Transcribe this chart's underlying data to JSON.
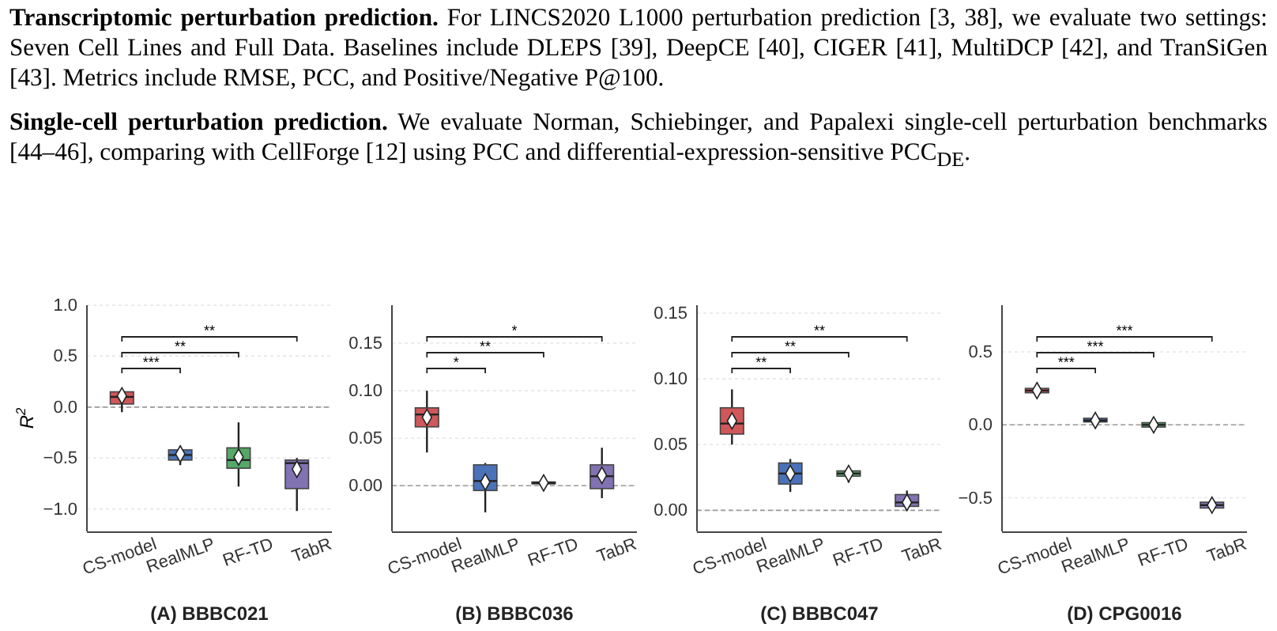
{
  "chart_data": [
    {
      "type": "other",
      "annotations": [
        "Transcriptomic perturbation prediction.",
        "For LINCS2020 L1000 perturbation prediction [3, 38], we evaluate two settings: Seven Cell Lines and Full Data. Baselines include DLEPS [39], DeepCE [40], CIGER [41], MultiDCP [42], and TranSiGen [43]. Metrics include RMSE, PCC, and Positive/Negative P@100.",
        "Single-cell perturbation prediction.",
        "We evaluate Norman, Schiebinger, and Papalexi single-cell perturbation benchmarks [44–46], comparing with CellForge [12] using PCC and differential-expression-sensitive PCC$_{DE}$."
      ]
    },
    {
      "type": "box",
      "xlabel": "(A) BBBC021",
      "ylabel": "R$^{2}$",
      "categories": [
        "CS-model",
        "RealMLP",
        "RF-TD",
        "TabR"
      ],
      "colors": [
        "#d0575a",
        "#4a72b8",
        "#55a868",
        "#8172b2"
      ],
      "boxes": [
        {
          "low": -0.05,
          "q1": 0.03,
          "median": 0.1,
          "q3": 0.15,
          "high": 0.17,
          "mean": 0.11
        },
        {
          "low": -0.57,
          "q1": -0.52,
          "median": -0.47,
          "q3": -0.42,
          "high": -0.38,
          "mean": -0.46
        },
        {
          "low": -0.78,
          "q1": -0.6,
          "median": -0.52,
          "q3": -0.4,
          "high": -0.15,
          "mean": -0.49
        },
        {
          "low": -1.02,
          "q1": -0.8,
          "median": -0.55,
          "q3": -0.52,
          "high": -0.5,
          "mean": -0.61
        }
      ],
      "ylim": [
        -1.22,
        1.0
      ],
      "yticks": [
        {
          "value": -1.0,
          "label": "−1.0"
        },
        {
          "value": -0.5,
          "label": "−0.5"
        },
        {
          "value": 0,
          "label": "0.0"
        },
        {
          "value": 0.5,
          "label": "0.5"
        },
        {
          "value": 1.0,
          "label": "1.0"
        }
      ],
      "grid": "y",
      "ref_lines": [
        {
          "axis": "y",
          "value": 0,
          "label": null,
          "color": "#999999",
          "line_style": "dashed"
        }
      ],
      "annotations": [
        "***",
        "**",
        "**"
      ]
    },
    {
      "type": "box",
      "xlabel": "(B) BBBC036",
      "categories": [
        "CS-model",
        "RealMLP",
        "RF-TD",
        "TabR"
      ],
      "colors": [
        "#d0575a",
        "#4a72b8",
        "#55a868",
        "#8172b2"
      ],
      "boxes": [
        {
          "low": 0.035,
          "q1": 0.062,
          "median": 0.075,
          "q3": 0.082,
          "high": 0.1,
          "mean": 0.072
        },
        {
          "low": -0.028,
          "q1": -0.005,
          "median": 0.005,
          "q3": 0.022,
          "high": 0.024,
          "mean": 0.004
        },
        {
          "low": 0.0,
          "q1": 0.002,
          "median": 0.003,
          "q3": 0.004,
          "high": 0.006,
          "mean": 0.003
        },
        {
          "low": -0.013,
          "q1": -0.003,
          "median": 0.01,
          "q3": 0.022,
          "high": 0.04,
          "mean": 0.011
        }
      ],
      "ylim": [
        -0.048,
        0.19
      ],
      "yticks": [
        {
          "value": 0,
          "label": "0.00"
        },
        {
          "value": 0.05,
          "label": "0.05"
        },
        {
          "value": 0.1,
          "label": "0.10"
        },
        {
          "value": 0.15,
          "label": "0.15"
        }
      ],
      "grid": "y",
      "ref_lines": [
        {
          "axis": "y",
          "value": 0,
          "label": null,
          "color": "#999999",
          "line_style": "dashed"
        }
      ],
      "annotations": [
        "*",
        "**",
        "*"
      ]
    },
    {
      "type": "box",
      "xlabel": "(C) BBBC047",
      "categories": [
        "CS-model",
        "RealMLP",
        "RF-TD",
        "TabR"
      ],
      "colors": [
        "#d0575a",
        "#4a72b8",
        "#55a868",
        "#8172b2"
      ],
      "boxes": [
        {
          "low": 0.05,
          "q1": 0.058,
          "median": 0.066,
          "q3": 0.078,
          "high": 0.092,
          "mean": 0.068
        },
        {
          "low": 0.014,
          "q1": 0.02,
          "median": 0.028,
          "q3": 0.036,
          "high": 0.039,
          "mean": 0.028
        },
        {
          "low": 0.021,
          "q1": 0.026,
          "median": 0.028,
          "q3": 0.03,
          "high": 0.031,
          "mean": 0.028
        },
        {
          "low": 0.0,
          "q1": 0.003,
          "median": 0.006,
          "q3": 0.012,
          "high": 0.015,
          "mean": 0.006
        }
      ],
      "ylim": [
        -0.016,
        0.156
      ],
      "yticks": [
        {
          "value": 0,
          "label": "0.00"
        },
        {
          "value": 0.05,
          "label": "0.05"
        },
        {
          "value": 0.1,
          "label": "0.10"
        },
        {
          "value": 0.15,
          "label": "0.15"
        }
      ],
      "grid": "y",
      "ref_lines": [
        {
          "axis": "y",
          "value": 0,
          "label": null,
          "color": "#999999",
          "line_style": "dashed"
        }
      ],
      "annotations": [
        "**",
        "**",
        "**"
      ]
    },
    {
      "type": "box",
      "xlabel": "(D) CPG0016",
      "categories": [
        "CS-model",
        "RealMLP",
        "RF-TD",
        "TabR"
      ],
      "colors": [
        "#d0575a",
        "#4a72b8",
        "#55a868",
        "#8172b2"
      ],
      "boxes": [
        {
          "low": 0.2,
          "q1": 0.22,
          "median": 0.235,
          "q3": 0.25,
          "high": 0.27,
          "mean": 0.235
        },
        {
          "low": 0.0,
          "q1": 0.02,
          "median": 0.03,
          "q3": 0.045,
          "high": 0.06,
          "mean": 0.03
        },
        {
          "low": -0.04,
          "q1": -0.015,
          "median": 0.0,
          "q3": 0.015,
          "high": 0.04,
          "mean": 0.0
        },
        {
          "low": -0.58,
          "q1": -0.57,
          "median": -0.55,
          "q3": -0.53,
          "high": -0.52,
          "mean": -0.55
        }
      ],
      "ylim": [
        -0.73,
        0.82
      ],
      "yticks": [
        {
          "value": -0.5,
          "label": "−0.5"
        },
        {
          "value": 0,
          "label": "0.0"
        },
        {
          "value": 0.5,
          "label": "0.5"
        }
      ],
      "grid": "y",
      "ref_lines": [
        {
          "axis": "y",
          "value": 0,
          "label": null,
          "color": "#999999",
          "line_style": "dashed"
        }
      ],
      "annotations": [
        "***",
        "***",
        "***"
      ]
    }
  ]
}
